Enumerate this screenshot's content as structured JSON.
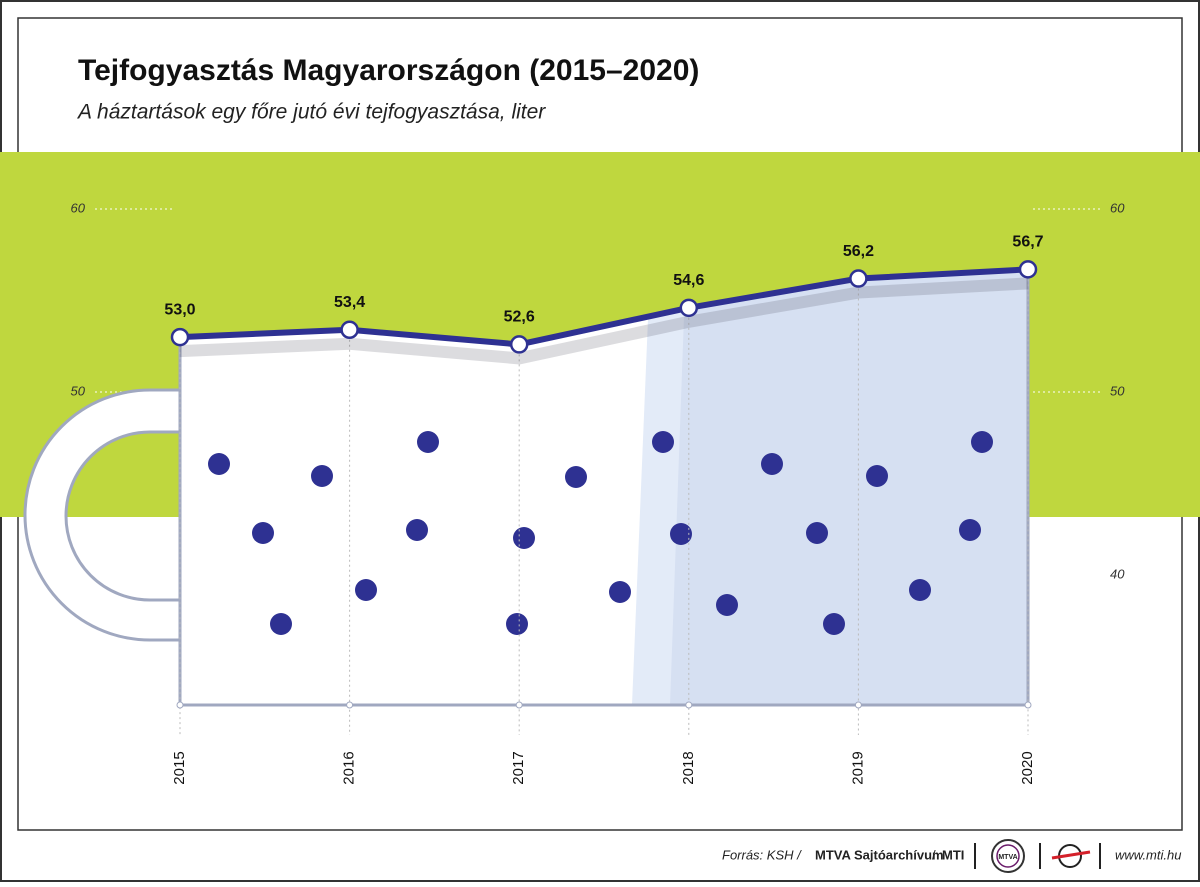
{
  "chart_data": {
    "type": "line",
    "title": "Tejfogyasztás Magyarországon (2015–2020)",
    "subtitle": "A háztartások egy főre jutó évi tejfogyasztása, liter",
    "categories": [
      "2015",
      "2016",
      "2017",
      "2018",
      "2019",
      "2020"
    ],
    "series": [
      {
        "name": "Tejfogyasztás",
        "color": "#2e3192",
        "values": [
          53.0,
          53.4,
          52.6,
          54.6,
          56.2,
          56.7
        ],
        "value_labels": [
          "53,0",
          "53,4",
          "52,6",
          "54,6",
          "56,2",
          "56,7"
        ]
      }
    ],
    "ylim": [
      40,
      60
    ],
    "yticks": [
      40,
      50,
      60
    ],
    "grid": true
  },
  "footer": {
    "source_prefix": "Forrás: KSH /",
    "source_archive": "MTVA Sajtóarchívum",
    "separator": "/",
    "source_agency": "MTI",
    "logo_text": "MTVA",
    "url": "www.mti.hu"
  }
}
